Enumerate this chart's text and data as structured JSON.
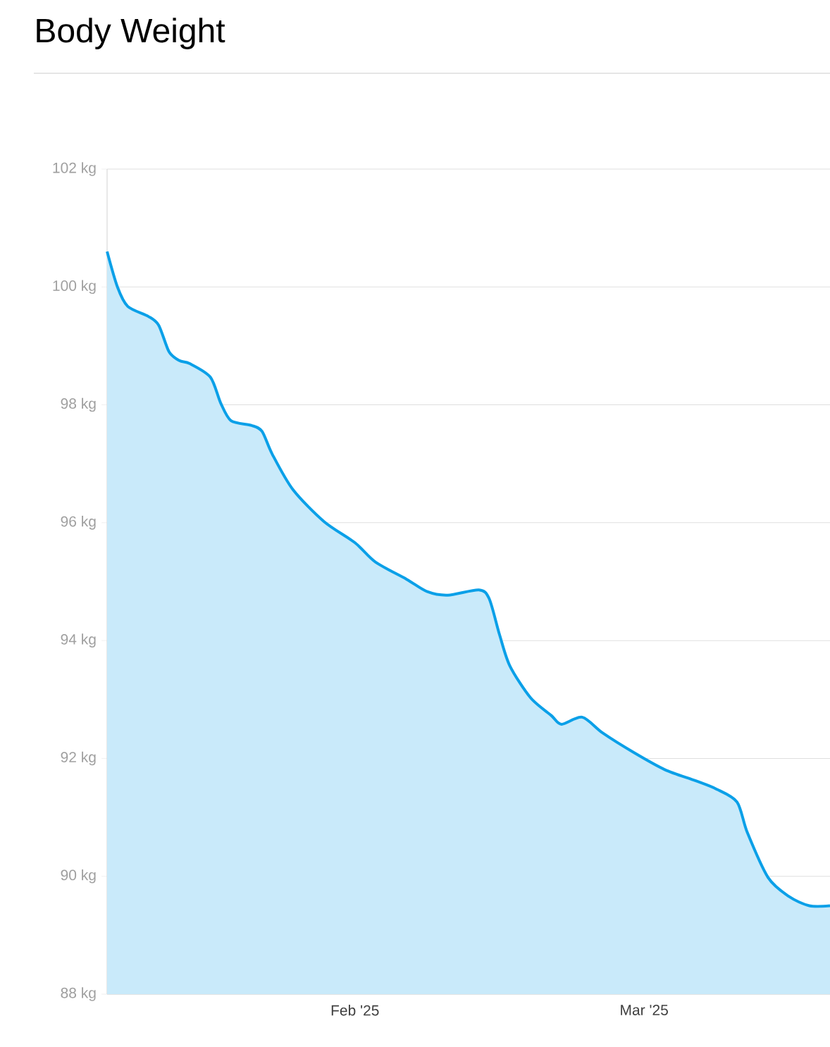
{
  "chart_data": {
    "type": "area",
    "title": "Body Weight",
    "x": [
      "2025-01-08",
      "2025-01-09",
      "2025-01-10",
      "2025-01-12",
      "2025-01-13",
      "2025-01-14",
      "2025-01-15",
      "2025-01-16",
      "2025-01-18",
      "2025-01-19",
      "2025-01-20",
      "2025-01-22",
      "2025-01-23",
      "2025-01-24",
      "2025-01-26",
      "2025-01-29",
      "2025-02-01",
      "2025-02-03",
      "2025-02-06",
      "2025-02-08",
      "2025-02-10",
      "2025-02-13",
      "2025-02-14",
      "2025-02-15",
      "2025-02-16",
      "2025-02-18",
      "2025-02-20",
      "2025-02-21",
      "2025-02-23",
      "2025-02-25",
      "2025-02-28",
      "2025-03-03",
      "2025-03-06",
      "2025-03-08",
      "2025-03-10",
      "2025-03-11",
      "2025-03-13",
      "2025-03-15",
      "2025-03-17",
      "2025-03-19"
    ],
    "series": [
      {
        "color": "#0ba0e8",
        "values": [
          100.6,
          100.0,
          99.67,
          99.5,
          99.35,
          98.9,
          98.75,
          98.7,
          98.47,
          98.03,
          97.73,
          97.65,
          97.55,
          97.16,
          96.56,
          96.02,
          95.66,
          95.33,
          95.04,
          94.83,
          94.77,
          94.86,
          94.71,
          94.1,
          93.57,
          93.03,
          92.73,
          92.58,
          92.7,
          92.43,
          92.1,
          91.81,
          91.62,
          91.48,
          91.26,
          90.74,
          89.98,
          89.66,
          89.5,
          89.5
        ]
      }
    ],
    "xlim": [
      "2025-01-08",
      "2025-03-19"
    ],
    "xticks": [
      {
        "value": "2025-02-01",
        "label": "Feb '25"
      },
      {
        "value": "2025-03-01",
        "label": "Mar '25"
      }
    ],
    "ylim": [
      88,
      102
    ],
    "yticks": [
      {
        "value": 88,
        "label": "88 kg"
      },
      {
        "value": 90,
        "label": "90 kg"
      },
      {
        "value": 92,
        "label": "92 kg"
      },
      {
        "value": 94,
        "label": "94 kg"
      },
      {
        "value": 96,
        "label": "96 kg"
      },
      {
        "value": 98,
        "label": "98 kg"
      },
      {
        "value": 100,
        "label": "100 kg"
      },
      {
        "value": 102,
        "label": "102 kg"
      }
    ],
    "grid": "y",
    "marker": "none",
    "line_style": "solid"
  }
}
